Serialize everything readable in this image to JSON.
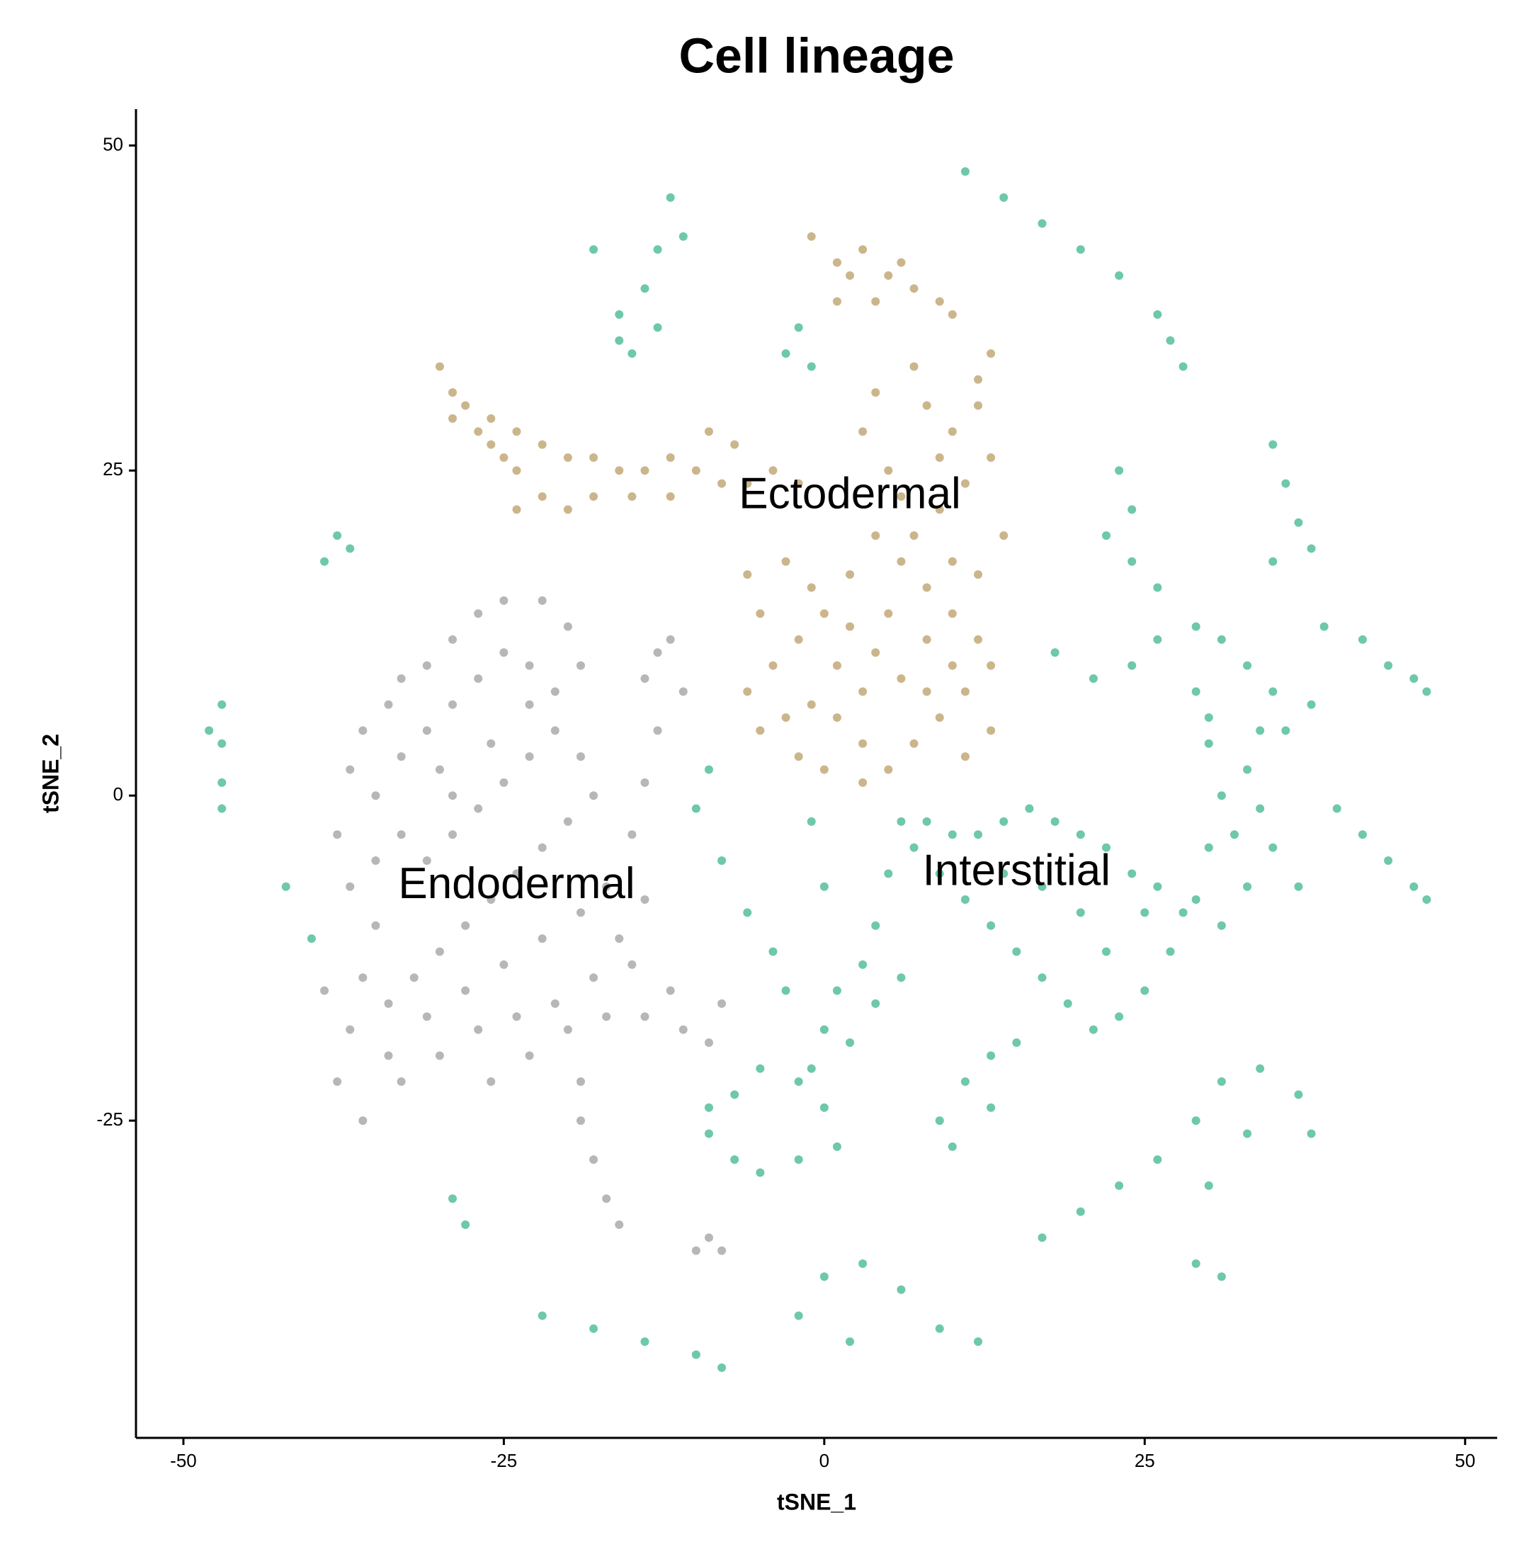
{
  "chart_data": {
    "type": "scatter",
    "title": "Cell lineage",
    "x_label": "tSNE_1",
    "y_label": "tSNE_2",
    "xlim": [
      -53.7,
      52.5
    ],
    "ylim": [
      -49.4,
      52.8
    ],
    "xticks": [
      -50,
      -25,
      0,
      25,
      50
    ],
    "yticks": [
      -25,
      0,
      25,
      50
    ],
    "grid": false,
    "series": [
      {
        "name": "Ectodermal",
        "color": "#c8b285",
        "x": [
          -30,
          -29,
          -28,
          -27,
          -26,
          -25,
          -24,
          -29,
          -26,
          -24,
          -22,
          -20,
          -18,
          -16,
          -14,
          -12,
          -10,
          -8,
          -6,
          -4,
          -2,
          -22,
          -18,
          -15,
          -20,
          -24,
          -12,
          -9,
          -7,
          -1,
          1,
          3,
          5,
          7,
          9,
          10,
          1,
          4,
          2,
          6,
          8,
          10,
          12,
          13,
          11,
          9,
          7,
          5,
          6,
          8,
          10,
          12,
          13,
          11,
          9,
          7,
          5,
          3,
          1,
          -1,
          -3,
          -5,
          -6,
          -4,
          -2,
          0,
          2,
          4,
          6,
          8,
          10,
          12,
          14,
          13,
          11,
          -5,
          -6,
          -3,
          -1,
          2,
          4,
          6,
          3,
          4,
          7,
          12,
          13,
          9,
          5,
          3,
          1,
          -2,
          8,
          10,
          3,
          0
        ],
        "values": [
          33,
          31,
          30,
          28,
          27,
          26,
          25,
          29,
          29,
          28,
          27,
          26,
          26,
          25,
          25,
          26,
          25,
          24,
          24,
          25,
          24,
          23,
          23,
          23,
          22,
          22,
          23,
          28,
          27,
          43,
          41,
          42,
          40,
          39,
          38,
          37,
          38,
          38,
          40,
          41,
          30,
          28,
          30,
          26,
          24,
          22,
          20,
          25,
          18,
          16,
          14,
          12,
          10,
          8,
          6,
          4,
          2,
          4,
          6,
          7,
          6,
          5,
          8,
          10,
          12,
          14,
          13,
          11,
          9,
          12,
          18,
          17,
          20,
          5,
          3,
          14,
          17,
          18,
          16,
          17,
          20,
          23,
          28,
          31,
          33,
          32,
          34,
          26,
          14,
          8,
          10,
          3,
          8,
          10,
          1,
          2
        ]
      },
      {
        "name": "Endodermal",
        "color": "#b3b3b3",
        "x": [
          -36,
          -38,
          -37,
          -39,
          -36,
          -34,
          -35,
          -37,
          -38,
          -37,
          -36,
          -34,
          -33,
          -31,
          -29,
          -27,
          -25,
          -22,
          -20,
          -19,
          -21,
          -23,
          -25,
          -27,
          -29,
          -31,
          -33,
          -35,
          -33,
          -31,
          -29,
          -27,
          -25,
          -23,
          -21,
          -19,
          -18,
          -20,
          -22,
          -24,
          -26,
          -28,
          -30,
          -32,
          -34,
          -31,
          -28,
          -25,
          -22,
          -19,
          -17,
          -16,
          -18,
          -21,
          -24,
          -27,
          -30,
          -33,
          -29,
          -26,
          -23,
          -30,
          -35,
          -20,
          -17,
          -14,
          -11,
          -9,
          -8,
          -12,
          -15,
          -14,
          -15,
          -14,
          -13,
          -14,
          -12,
          -13,
          -11,
          -19,
          -19,
          -18,
          -17,
          -16,
          -9,
          -10,
          -8,
          -26,
          -23
        ],
        "values": [
          -25,
          -22,
          -18,
          -15,
          -14,
          -20,
          -10,
          -7,
          -3,
          2,
          5,
          7,
          9,
          10,
          12,
          14,
          15,
          15,
          13,
          10,
          8,
          10,
          11,
          9,
          7,
          5,
          3,
          0,
          -3,
          -5,
          -3,
          -1,
          1,
          3,
          5,
          3,
          0,
          -2,
          -4,
          -6,
          -8,
          -10,
          -12,
          -14,
          -16,
          -17,
          -15,
          -13,
          -11,
          -9,
          -7,
          -11,
          -14,
          -16,
          -17,
          -18,
          -20,
          -22,
          0,
          4,
          7,
          2,
          -5,
          -18,
          -17,
          -17,
          -18,
          -19,
          -16,
          -15,
          -13,
          -8,
          -3,
          1,
          5,
          9,
          12,
          11,
          8,
          -22,
          -25,
          -28,
          -31,
          -33,
          -34,
          -35,
          -35,
          -22,
          -20
        ]
      },
      {
        "name": "Interstitial",
        "color": "#66c5a5",
        "x": [
          11,
          14,
          17,
          20,
          23,
          26,
          27,
          28,
          -12,
          -11,
          -13,
          -14,
          -13,
          -16,
          -16,
          -15,
          -18,
          -2,
          -3,
          -1,
          -38,
          -37,
          -39,
          -47,
          -47,
          -47,
          -48,
          -47,
          23,
          24,
          22,
          24,
          26,
          35,
          36,
          37,
          35,
          38,
          39,
          42,
          44,
          46,
          47,
          40,
          42,
          44,
          46,
          47,
          18,
          21,
          24,
          26,
          29,
          31,
          33,
          35,
          34,
          33,
          34,
          35,
          33,
          31,
          29,
          27,
          25,
          23,
          21,
          19,
          17,
          15,
          13,
          11,
          9,
          7,
          5,
          6,
          8,
          10,
          12,
          14,
          16,
          18,
          20,
          22,
          24,
          26,
          28,
          30,
          31,
          30,
          29,
          20,
          17,
          14,
          22,
          25,
          37,
          36,
          38,
          30,
          32,
          4,
          3,
          1,
          0,
          -1,
          0,
          1,
          -2,
          -5,
          -7,
          -9,
          -9,
          -7,
          -5,
          -3,
          -4,
          -6,
          -8,
          -10,
          -9,
          2,
          4,
          6,
          -2,
          -1,
          0,
          9,
          11,
          13,
          15,
          10,
          13,
          17,
          20,
          23,
          26,
          29,
          31,
          34,
          37,
          38,
          33,
          30,
          29,
          31,
          -2,
          0,
          3,
          6,
          9,
          12,
          2,
          -22,
          -18,
          -14,
          -10,
          -8,
          -29,
          -28,
          -42,
          -40
        ],
        "values": [
          48,
          46,
          44,
          42,
          40,
          37,
          35,
          33,
          46,
          43,
          42,
          39,
          36,
          37,
          35,
          34,
          42,
          36,
          34,
          33,
          20,
          19,
          18,
          7,
          4,
          1,
          5,
          -1,
          25,
          22,
          20,
          18,
          16,
          27,
          24,
          21,
          18,
          19,
          13,
          12,
          10,
          9,
          8,
          -1,
          -3,
          -5,
          -7,
          -8,
          11,
          9,
          10,
          12,
          13,
          12,
          10,
          8,
          5,
          2,
          -1,
          -4,
          -7,
          -10,
          -8,
          -12,
          -15,
          -17,
          -18,
          -16,
          -14,
          -12,
          -10,
          -8,
          -6,
          -4,
          -6,
          -2,
          -2,
          -3,
          -3,
          -2,
          -1,
          -2,
          -3,
          -4,
          -6,
          -7,
          -9,
          -4,
          0,
          4,
          8,
          -9,
          -7,
          -6,
          -12,
          -9,
          -7,
          5,
          7,
          6,
          -3,
          -10,
          -13,
          -15,
          -18,
          -21,
          -24,
          -27,
          -28,
          -29,
          -28,
          -26,
          -24,
          -23,
          -21,
          -15,
          -12,
          -9,
          -5,
          -1,
          2,
          -19,
          -16,
          -14,
          -22,
          -2,
          -7,
          -25,
          -22,
          -20,
          -19,
          -27,
          -24,
          -34,
          -32,
          -30,
          -28,
          -25,
          -22,
          -21,
          -23,
          -26,
          -26,
          -30,
          -36,
          -37,
          -40,
          -37,
          -36,
          -38,
          -41,
          -42,
          -42,
          -40,
          -41,
          -42,
          -43,
          -44,
          -31,
          -33,
          -7,
          -11
        ]
      }
    ]
  }
}
